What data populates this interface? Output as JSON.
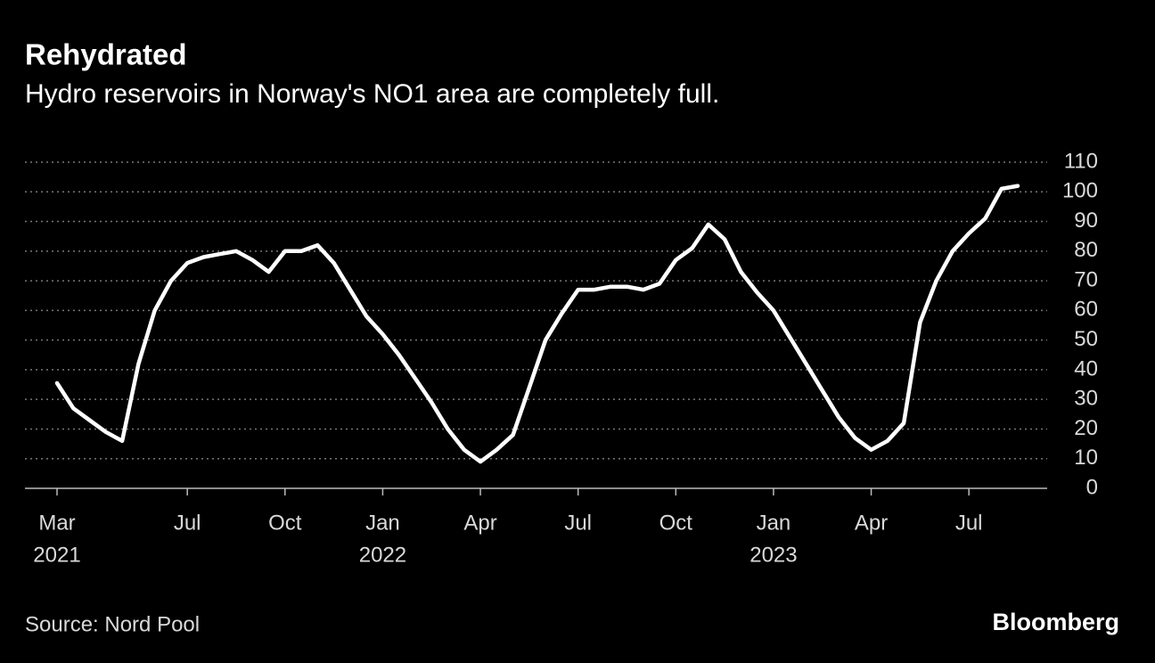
{
  "chart_data": {
    "type": "line",
    "title": "Rehydrated",
    "subtitle": "Hydro reservoirs in Norway's NO1 area are completely full.",
    "source": "Source: Nord Pool",
    "brand": "Bloomberg",
    "categories": [
      [
        "Mar",
        "2021"
      ],
      null,
      null,
      null,
      null,
      null,
      null,
      null,
      [
        "Jul"
      ],
      null,
      null,
      null,
      null,
      null,
      [
        "Oct"
      ],
      null,
      null,
      null,
      null,
      null,
      [
        "Jan",
        "2022"
      ],
      null,
      null,
      null,
      null,
      null,
      [
        "Apr"
      ],
      null,
      null,
      null,
      null,
      null,
      [
        "Jul"
      ],
      null,
      null,
      null,
      null,
      null,
      [
        "Oct"
      ],
      null,
      null,
      null,
      null,
      null,
      [
        "Jan",
        "2023"
      ],
      null,
      null,
      null,
      null,
      null,
      [
        "Apr"
      ],
      null,
      null,
      null,
      null,
      null,
      [
        "Jul"
      ],
      null,
      null,
      null
    ],
    "series": [
      {
        "color": "#ffffff",
        "values": [
          35.5,
          27,
          23,
          19,
          16,
          42,
          60,
          70,
          76,
          78,
          79,
          80,
          77,
          73,
          80,
          80,
          82,
          76,
          67,
          58,
          52,
          45,
          37,
          29,
          20,
          13,
          9,
          13,
          18,
          34,
          50,
          59,
          67,
          67,
          68,
          68,
          67,
          69,
          77,
          81,
          89,
          84,
          73,
          66,
          60,
          51,
          42,
          33,
          24,
          17,
          13,
          16,
          22,
          56,
          70,
          80,
          86,
          91,
          101,
          102
        ]
      }
    ],
    "ylim": [
      0,
      110
    ],
    "yticks": [
      0,
      10,
      20,
      30,
      40,
      50,
      60,
      70,
      80,
      90,
      100,
      110
    ],
    "grid": true
  }
}
